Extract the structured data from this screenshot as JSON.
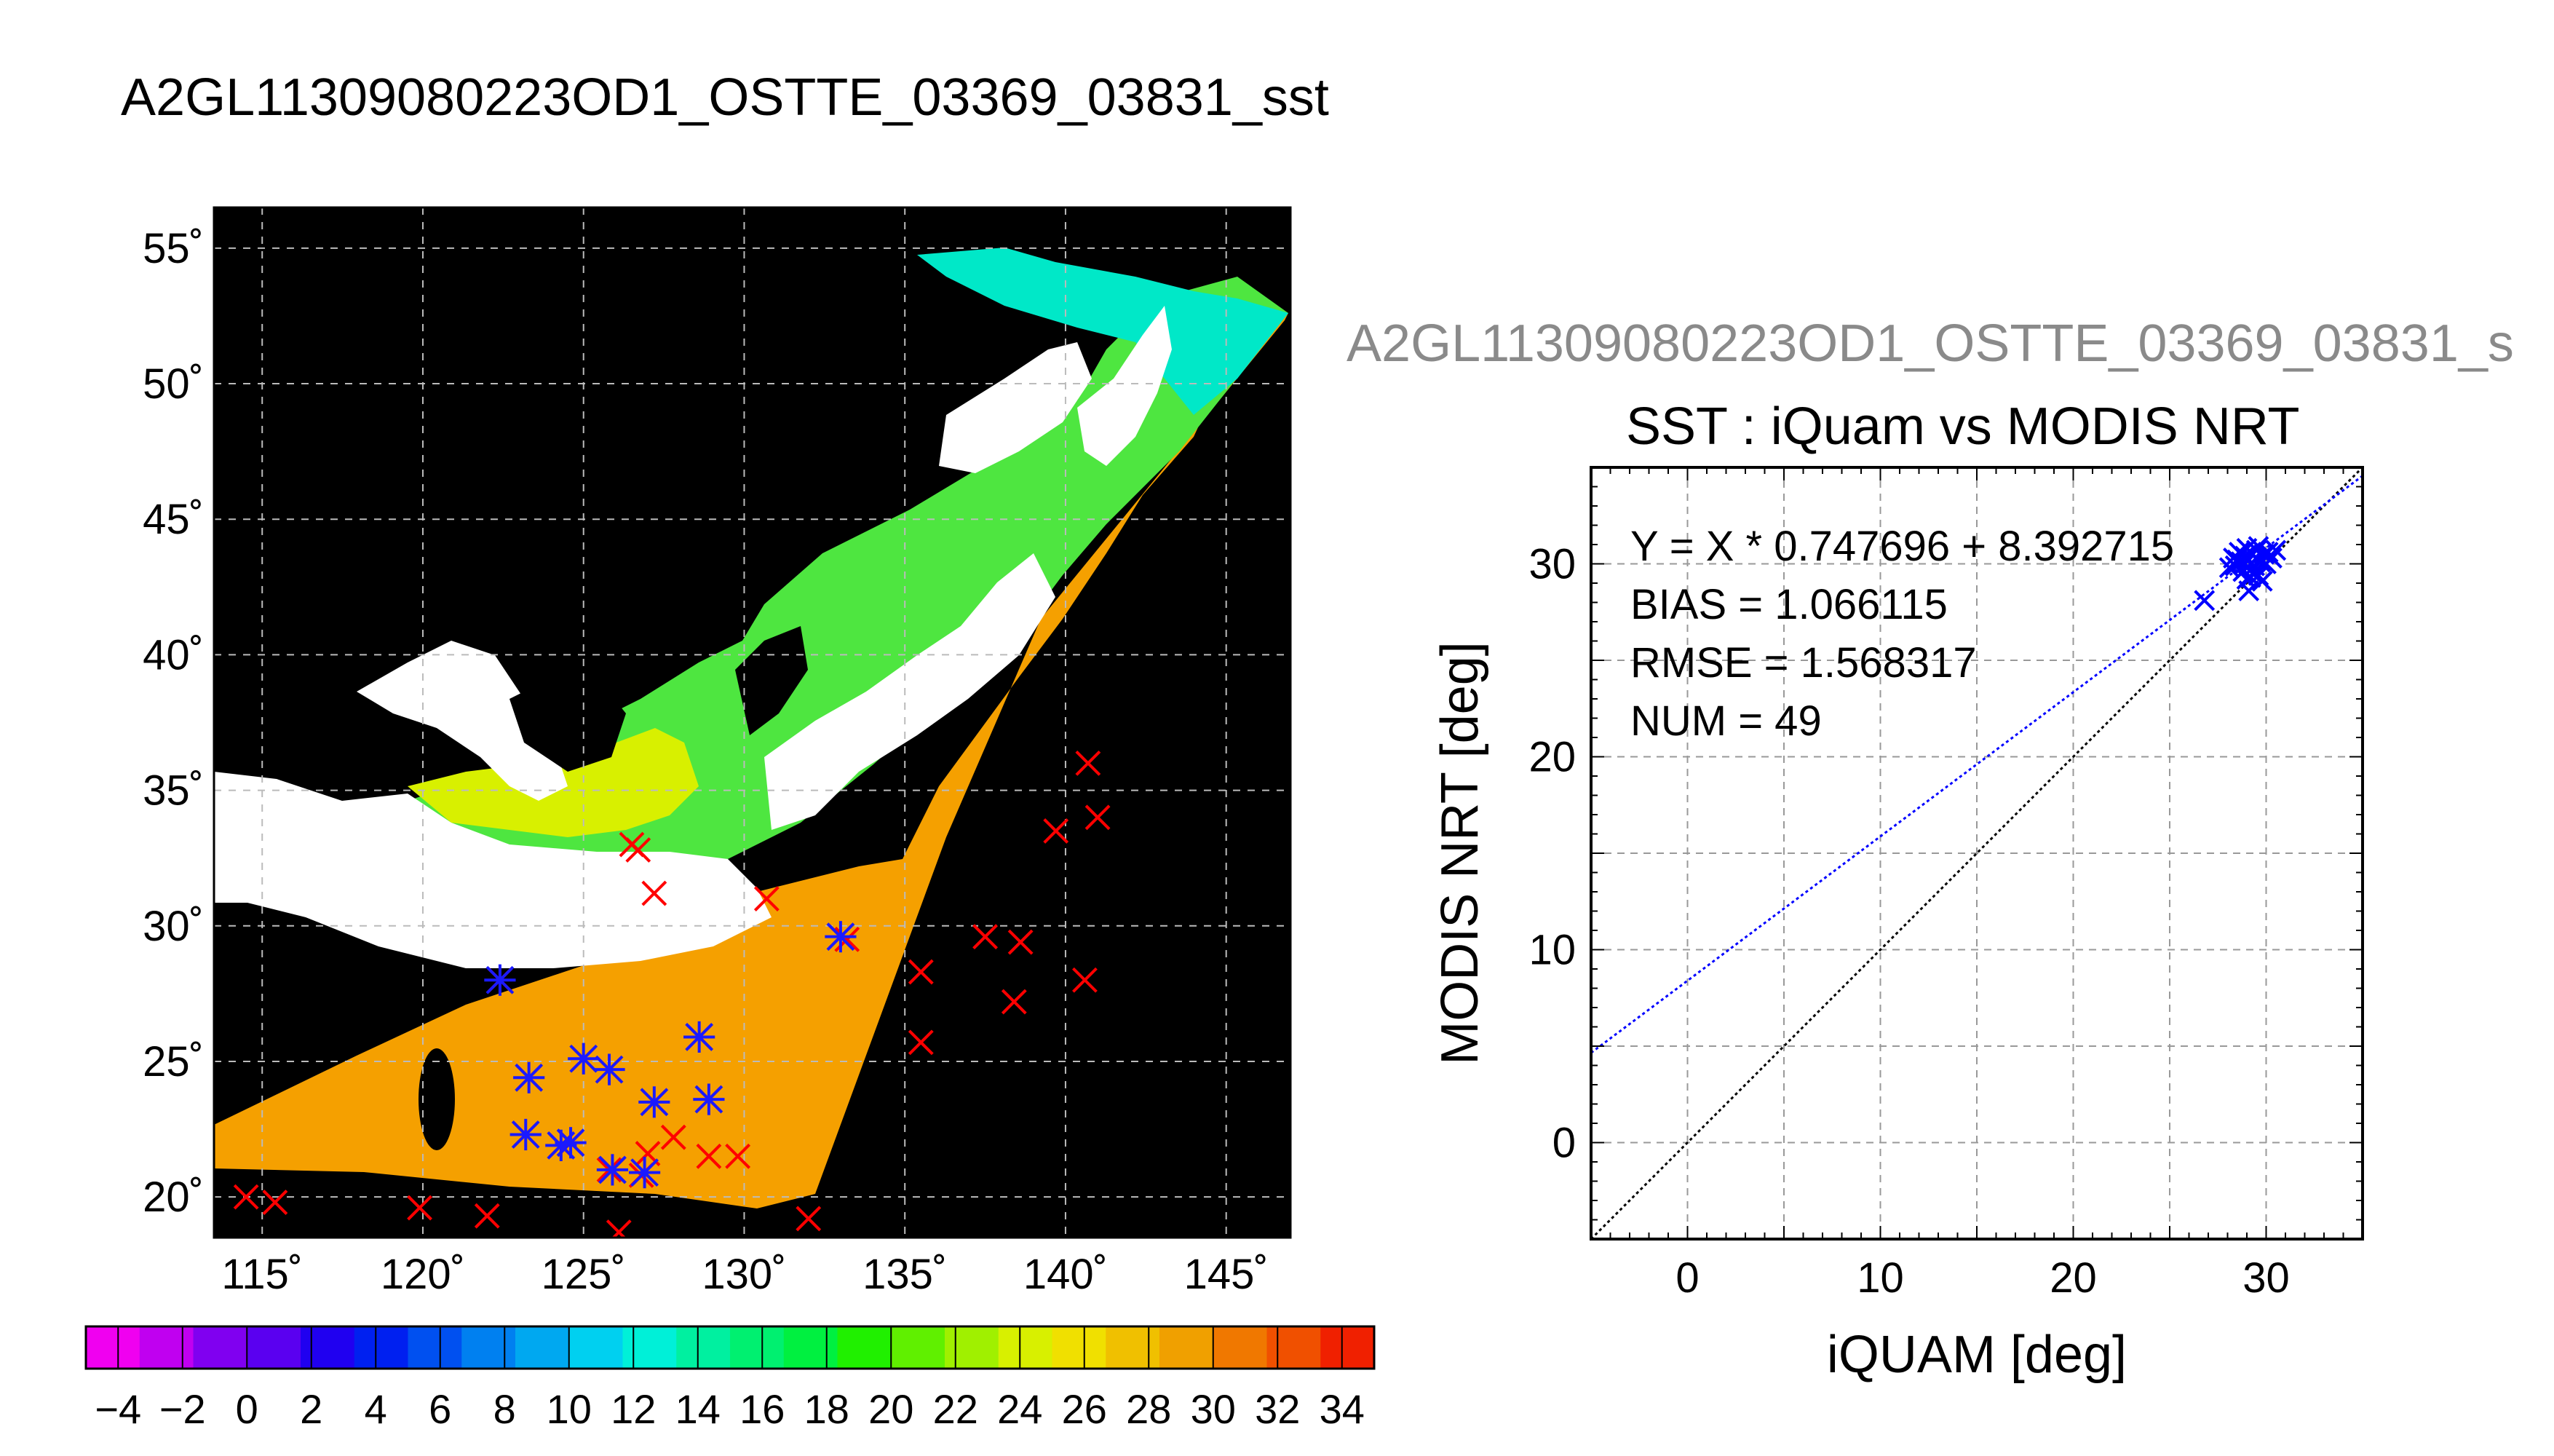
{
  "main_title": "A2GL11309080223OD1_OSTTE_03369_03831_sst",
  "right_title": "A2GL11309080223OD1_OSTTE_03369_03831_s",
  "colors": {
    "match_marker": "#ff0000",
    "matched_marker": "#1a1aff",
    "fit_line": "#0000ff",
    "identity_line": "#000000",
    "land": "#ffffff",
    "nodata": "#000000"
  },
  "chart_data": [
    {
      "type": "heatmap",
      "title": "",
      "xlabel": "",
      "ylabel": "",
      "xlim": [
        113.5,
        147
      ],
      "ylim": [
        18.5,
        56.5
      ],
      "x_tick_values": [
        115,
        120,
        125,
        130,
        135,
        140,
        145
      ],
      "x_tick_labels": [
        "115˚",
        "120˚",
        "125˚",
        "130˚",
        "135˚",
        "140˚",
        "145˚"
      ],
      "y_tick_values": [
        20,
        25,
        30,
        35,
        40,
        45,
        50,
        55
      ],
      "y_tick_labels": [
        "20˚",
        "25˚",
        "30˚",
        "35˚",
        "40˚",
        "45˚",
        "50˚",
        "55˚"
      ],
      "grid": true,
      "colorbar": {
        "range": [
          -5,
          35
        ],
        "tick_values": [
          -4,
          -2,
          0,
          2,
          4,
          6,
          8,
          10,
          12,
          14,
          16,
          18,
          20,
          22,
          24,
          26,
          28,
          30,
          32,
          34
        ],
        "tick_labels": [
          "−4",
          "−2",
          "0",
          "2",
          "4",
          "6",
          "8",
          "10",
          "12",
          "14",
          "16",
          "18",
          "20",
          "22",
          "24",
          "26",
          "28",
          "30",
          "32",
          "34"
        ],
        "colors": [
          "#f000f0",
          "#c000f0",
          "#8000f0",
          "#5a00f0",
          "#2000f0",
          "#0020f0",
          "#0050f0",
          "#0080f0",
          "#00a8f0",
          "#00d0f0",
          "#00f0d8",
          "#00f0a0",
          "#00f070",
          "#00f040",
          "#20f000",
          "#60f000",
          "#a0f000",
          "#d8f000",
          "#f0e000",
          "#f0c000",
          "#f0a000",
          "#f07800",
          "#f05000",
          "#f02000"
        ]
      },
      "match_points_red": [
        [
          114.5,
          20.0
        ],
        [
          115.4,
          19.8
        ],
        [
          119.9,
          19.6
        ],
        [
          122.0,
          19.3
        ],
        [
          126.1,
          18.7
        ],
        [
          132.0,
          19.2
        ],
        [
          126.5,
          33.0
        ],
        [
          126.7,
          32.8
        ],
        [
          127.2,
          31.2
        ],
        [
          130.7,
          31.0
        ],
        [
          133.2,
          29.5
        ],
        [
          135.5,
          28.3
        ],
        [
          135.5,
          25.7
        ],
        [
          137.5,
          29.6
        ],
        [
          138.6,
          29.4
        ],
        [
          138.4,
          27.2
        ],
        [
          139.7,
          33.5
        ],
        [
          140.7,
          36.0
        ],
        [
          141.0,
          34.0
        ],
        [
          140.6,
          28.0
        ],
        [
          128.9,
          21.5
        ],
        [
          129.8,
          21.5
        ],
        [
          127.8,
          22.2
        ],
        [
          127.0,
          21.6
        ],
        [
          125.8,
          21.0
        ],
        [
          126.8,
          20.8
        ]
      ],
      "match_points_blue": [
        [
          122.4,
          28.0
        ],
        [
          123.3,
          24.4
        ],
        [
          123.2,
          22.3
        ],
        [
          124.3,
          21.9
        ],
        [
          124.6,
          22.0
        ],
        [
          125.0,
          25.1
        ],
        [
          125.8,
          24.7
        ],
        [
          127.2,
          23.5
        ],
        [
          128.6,
          25.9
        ],
        [
          128.9,
          23.6
        ],
        [
          133.0,
          29.6
        ],
        [
          125.9,
          21.0
        ],
        [
          126.9,
          20.9
        ]
      ]
    },
    {
      "type": "scatter",
      "title": "SST : iQuam vs MODIS NRT",
      "xlabel": "iQUAM [deg]",
      "ylabel": "MODIS NRT [deg]",
      "xlim": [
        -5,
        35
      ],
      "ylim": [
        -5,
        35
      ],
      "x_tick_values": [
        0,
        10,
        20,
        30
      ],
      "x_tick_labels": [
        "0",
        "10",
        "20",
        "30"
      ],
      "y_tick_values": [
        0,
        10,
        20,
        30
      ],
      "y_tick_labels": [
        "0",
        "10",
        "20",
        "30"
      ],
      "grid": true,
      "annotations": [
        "Y = X * 0.747696 + 8.392715",
        "BIAS = 1.066115",
        "RMSE = 1.568317",
        "NUM = 49"
      ],
      "fit": {
        "slope": 0.747696,
        "intercept": 8.392715
      },
      "points": [
        [
          26.8,
          28.1
        ],
        [
          28.1,
          29.8
        ],
        [
          28.3,
          30.3
        ],
        [
          28.4,
          29.9
        ],
        [
          28.6,
          30.6
        ],
        [
          28.7,
          30.1
        ],
        [
          28.8,
          29.6
        ],
        [
          28.9,
          30.4
        ],
        [
          29.0,
          29.2
        ],
        [
          29.0,
          30.8
        ],
        [
          29.1,
          28.6
        ],
        [
          29.2,
          30.0
        ],
        [
          29.3,
          29.5
        ],
        [
          29.3,
          30.5
        ],
        [
          29.4,
          29.9
        ],
        [
          29.5,
          30.3
        ],
        [
          29.5,
          30.7
        ],
        [
          29.6,
          29.4
        ],
        [
          29.7,
          30.1
        ],
        [
          29.8,
          29.1
        ],
        [
          29.9,
          30.5
        ],
        [
          30.0,
          30.0
        ],
        [
          30.1,
          30.6
        ],
        [
          30.3,
          30.3
        ],
        [
          30.5,
          30.7
        ],
        [
          29.0,
          29.8
        ],
        [
          28.5,
          30.2
        ],
        [
          29.6,
          30.9
        ],
        [
          29.2,
          29.3
        ],
        [
          28.9,
          30.0
        ]
      ]
    }
  ]
}
